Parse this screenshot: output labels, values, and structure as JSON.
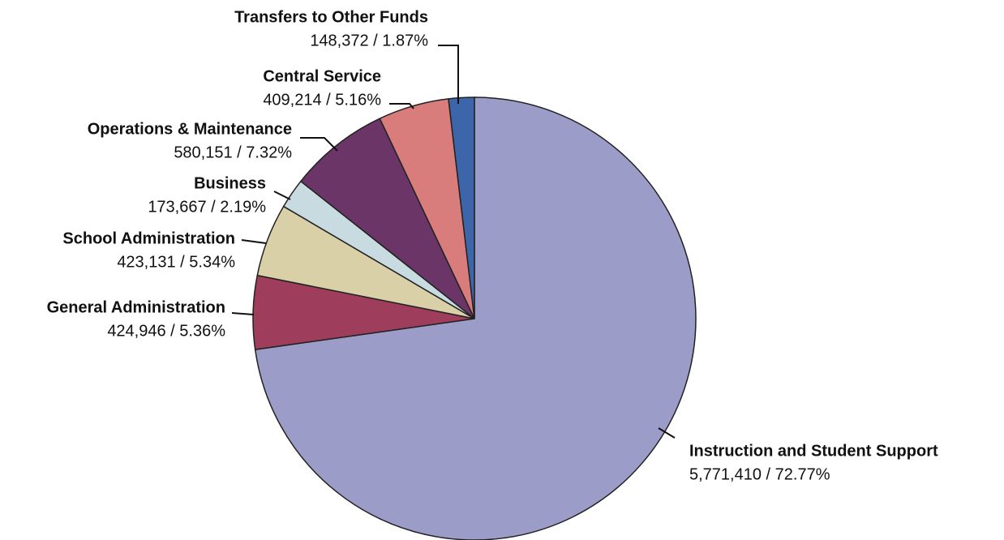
{
  "chart_data": {
    "type": "pie",
    "categories": [
      "Instruction and Student Support",
      "General Administration",
      "School Administration",
      "Business",
      "Operations & Maintenance",
      "Central Service",
      "Transfers to Other Funds"
    ],
    "values": [
      5771410,
      424946,
      423131,
      173667,
      580151,
      409214,
      148372
    ],
    "value_labels": [
      "5,771,410 / 72.77%",
      "424,946 / 5.36%",
      "423,131 / 5.34%",
      "173,667 / 2.19%",
      "580,151 / 7.32%",
      "409,214 / 5.16%",
      "148,372 / 1.87%"
    ],
    "colors": [
      "#9c9cc9",
      "#9e3d5c",
      "#d9d0a8",
      "#c7dbe0",
      "#6b3568",
      "#d97c7c",
      "#3d66aa"
    ]
  }
}
